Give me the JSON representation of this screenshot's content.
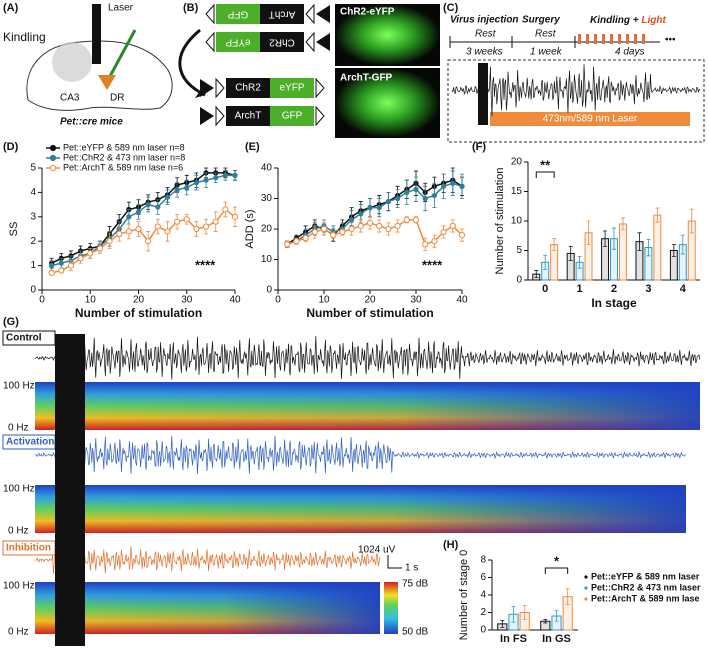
{
  "panel_a": {
    "label": "(A)",
    "laser": "Laser",
    "kindling": "Kindling",
    "ca3": "CA3",
    "dr": "DR",
    "mouse": "Pet::cre mice"
  },
  "panel_b": {
    "label": "(B)",
    "constructs": [
      {
        "a": "ArchT",
        "b": "GFP"
      },
      {
        "a": "ChR2",
        "b": "eYFP"
      },
      {
        "a": "ChR2",
        "b": "eYFP"
      },
      {
        "a": "ArchT",
        "b": "GFP"
      }
    ],
    "images": [
      "ChR2-eYFP",
      "ArchT-GFP"
    ]
  },
  "panel_c": {
    "label": "(C)",
    "virus": "Virus injection",
    "surgery": "Surgery",
    "kindling": "Kindling + ",
    "light": "Light",
    "rest1": "Rest",
    "weeks1": "3 weeks",
    "rest2": "Rest",
    "weeks2": "1 week",
    "days": "4 days",
    "more": "•••",
    "laser": "473nm/589 nm Laser"
  },
  "panel_g": {
    "label": "(G)",
    "traces": [
      {
        "name": "Control",
        "high": "100 Hz",
        "low": "0 Hz"
      },
      {
        "name": "Activation",
        "high": "100 Hz",
        "low": "0 Hz"
      },
      {
        "name": "Inhibition",
        "high": "100 Hz",
        "low": "0 Hz"
      }
    ],
    "scale_v": "1024 uV",
    "scale_t": "1 s",
    "colorbar": [
      "75 dB",
      "50 dB"
    ]
  },
  "chart_data": [
    {
      "type": "line",
      "label": "(D)",
      "xlabel": "Number of stimulation",
      "ylabel": "SS",
      "annotation": "****",
      "xlim": [
        0,
        40
      ],
      "xticks": [
        0,
        10,
        20,
        30,
        40
      ],
      "ylim": [
        0,
        5
      ],
      "yticks": [
        0,
        1,
        2,
        3,
        4,
        5
      ],
      "x": [
        2,
        4,
        6,
        8,
        10,
        12,
        14,
        16,
        18,
        20,
        22,
        24,
        26,
        28,
        30,
        32,
        34,
        36,
        38,
        40
      ],
      "series": [
        {
          "name": "Pet::eYFP & 589 nm laser n=8",
          "color": "#111111",
          "values": [
            1.1,
            1.3,
            1.4,
            1.6,
            1.7,
            1.8,
            2.3,
            2.8,
            3.3,
            3.4,
            3.6,
            3.7,
            3.9,
            4.3,
            4.4,
            4.5,
            4.8,
            4.8,
            4.8,
            4.7
          ],
          "errors": [
            0.2,
            0.2,
            0.2,
            0.2,
            0.2,
            0.2,
            0.3,
            0.3,
            0.3,
            0.3,
            0.3,
            0.3,
            0.3,
            0.3,
            0.3,
            0.3,
            0.2,
            0.2,
            0.2,
            0.2
          ]
        },
        {
          "name": "Pet::ChR2 & 473 nm laser n=8",
          "color": "#2f7f9a",
          "values": [
            1.0,
            1.1,
            1.2,
            1.4,
            1.5,
            1.8,
            2.1,
            2.5,
            3.0,
            3.2,
            3.5,
            3.4,
            3.8,
            4.1,
            4.2,
            4.4,
            4.5,
            4.6,
            4.7,
            4.7
          ],
          "errors": [
            0.2,
            0.2,
            0.2,
            0.2,
            0.2,
            0.2,
            0.3,
            0.3,
            0.3,
            0.3,
            0.3,
            0.3,
            0.3,
            0.3,
            0.3,
            0.3,
            0.3,
            0.2,
            0.2,
            0.2
          ]
        },
        {
          "name": "Pet::ArchT & 589 nm lase n=6",
          "color": "#f08a3c",
          "values": [
            0.7,
            0.8,
            1.0,
            1.3,
            1.5,
            1.7,
            2.0,
            2.3,
            2.4,
            2.5,
            2.0,
            2.6,
            2.4,
            2.8,
            2.9,
            2.5,
            2.6,
            2.8,
            3.3,
            3.0
          ],
          "errors": [
            0.1,
            0.1,
            0.2,
            0.2,
            0.2,
            0.2,
            0.3,
            0.3,
            0.3,
            0.3,
            0.4,
            0.3,
            0.4,
            0.3,
            0.2,
            0.3,
            0.3,
            0.4,
            0.3,
            0.4
          ]
        }
      ]
    },
    {
      "type": "line",
      "label": "(E)",
      "xlabel": "Number of stimulation",
      "ylabel": "ADD (s)",
      "annotation": "****",
      "xlim": [
        0,
        40
      ],
      "xticks": [
        0,
        10,
        20,
        30,
        40
      ],
      "ylim": [
        0,
        40
      ],
      "yticks": [
        0,
        10,
        20,
        30,
        40
      ],
      "x": [
        2,
        4,
        6,
        8,
        10,
        12,
        14,
        16,
        18,
        20,
        22,
        24,
        26,
        28,
        30,
        32,
        34,
        36,
        38,
        40
      ],
      "series": [
        {
          "color": "#111111",
          "values": [
            15,
            17,
            19,
            21,
            20,
            18,
            21,
            24,
            26,
            27,
            28,
            29,
            31,
            33,
            35,
            32,
            34,
            35,
            36,
            34
          ],
          "errors": [
            1,
            1,
            2,
            2,
            2,
            2,
            2,
            3,
            3,
            3,
            3,
            3,
            3,
            3,
            4,
            3,
            3,
            3,
            4,
            3
          ]
        },
        {
          "color": "#2f7f9a",
          "values": [
            15,
            16,
            18,
            20,
            21,
            19,
            20,
            23,
            25,
            27,
            27,
            29,
            30,
            32,
            33,
            30,
            31,
            34,
            35,
            34
          ],
          "errors": [
            1,
            1,
            2,
            2,
            2,
            2,
            2,
            3,
            3,
            3,
            3,
            3,
            3,
            4,
            4,
            4,
            4,
            4,
            4,
            4
          ]
        },
        {
          "color": "#f08a3c",
          "values": [
            15,
            16,
            17,
            19,
            20,
            18,
            19,
            20,
            21,
            22,
            21,
            20,
            21,
            23,
            23,
            15,
            16,
            19,
            21,
            18
          ],
          "errors": [
            1,
            1,
            1,
            2,
            2,
            1,
            1,
            2,
            2,
            2,
            2,
            2,
            2,
            1,
            1,
            2,
            2,
            2,
            2,
            2
          ]
        }
      ]
    },
    {
      "type": "bar",
      "label": "(F)",
      "xlabel": "In stage",
      "ylabel": "Number of stimulation",
      "annotation": "**",
      "categories": [
        "0",
        "1",
        "2",
        "3",
        "4"
      ],
      "ylim": [
        0,
        20
      ],
      "yticks": [
        0,
        5,
        10,
        15,
        20
      ],
      "series": [
        {
          "color": "#111111",
          "values": [
            1,
            4.5,
            7,
            6.5,
            5
          ],
          "errors": [
            0.6,
            1.2,
            1.3,
            1.5,
            1.0
          ]
        },
        {
          "color": "#2f9ac4",
          "values": [
            3,
            3,
            7,
            5.5,
            6
          ],
          "errors": [
            1.2,
            1.0,
            1.8,
            1.4,
            1.6
          ]
        },
        {
          "color": "#f08a3c",
          "values": [
            6,
            8,
            9.5,
            11,
            10
          ],
          "errors": [
            1.0,
            2.0,
            1.0,
            1.2,
            2.0
          ]
        }
      ]
    },
    {
      "type": "bar",
      "label": "(H)",
      "ylabel": "Number of stage 0",
      "annotation": "*",
      "categories": [
        "In FS",
        "In GS"
      ],
      "ylim": [
        0,
        8
      ],
      "yticks": [
        0,
        2,
        4,
        6,
        8
      ],
      "series": [
        {
          "name": "Pet::eYFP & 589 nm laser",
          "color": "#111111",
          "values": [
            0.7,
            1.0
          ],
          "errors": [
            0.4,
            0.2
          ]
        },
        {
          "name": "Pet::ChR2 & 473 nm laser",
          "color": "#2f9ac4",
          "values": [
            1.8,
            1.6
          ],
          "errors": [
            0.9,
            0.6
          ]
        },
        {
          "name": "Pet::ArchT & 589 nm lase",
          "color": "#f08a3c",
          "values": [
            2.0,
            3.8
          ],
          "errors": [
            0.8,
            0.9
          ]
        }
      ]
    }
  ]
}
